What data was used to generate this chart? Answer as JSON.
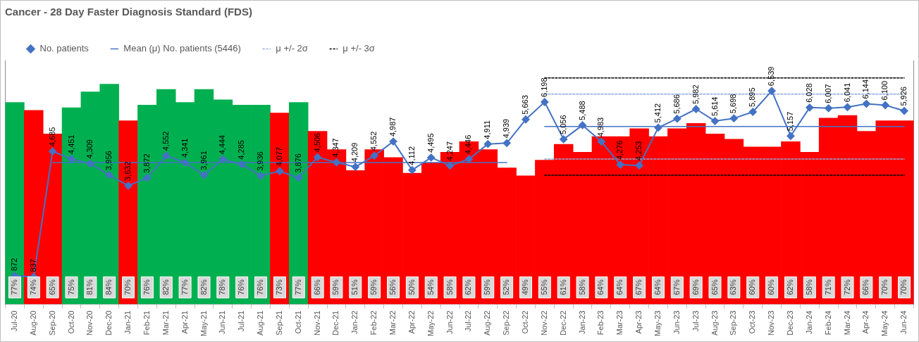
{
  "chart_data": {
    "type": "bar",
    "title": "Cancer - 28 Day Faster Diagnosis Standard (FDS)",
    "categories": [
      "Jul-20",
      "Aug-20",
      "Sep-20",
      "Oct-20",
      "Nov-20",
      "Dec-20",
      "Jan-21",
      "Feb-21",
      "Mar-21",
      "Apr-21",
      "May-21",
      "Jun-21",
      "Jul-21",
      "Aug-21",
      "Sep-21",
      "Oct-21",
      "Nov-21",
      "Dec-21",
      "Jan-22",
      "Feb-22",
      "Mar-22",
      "Apr-22",
      "May-22",
      "Jun-22",
      "Jul-22",
      "Aug-22",
      "Sep-22",
      "Oct-22",
      "Nov-22",
      "Dec-22",
      "Jan-23",
      "Feb-23",
      "Mar-23",
      "Apr-23",
      "May-23",
      "Jun-23",
      "Jul-23",
      "Aug-23",
      "Sep-23",
      "Oct-23",
      "Nov-23",
      "Dec-23",
      "Jan-24",
      "Feb-24",
      "Mar-24",
      "Apr-24",
      "May-24",
      "Jun-24"
    ],
    "ylim": [
      0,
      93
    ],
    "y2lim": [
      0,
      7470
    ],
    "tick_labels": "x",
    "grid": false,
    "legend": "top",
    "series": [
      {
        "axis": "y",
        "values": [
          77,
          74,
          65,
          75,
          81,
          84,
          70,
          76,
          82,
          77,
          82,
          78,
          76,
          76,
          73,
          77,
          66,
          59,
          51,
          59,
          56,
          50,
          54,
          58,
          62,
          59,
          52,
          49,
          55,
          61,
          58,
          64,
          64,
          67,
          64,
          67,
          69,
          65,
          63,
          60,
          60,
          62,
          58,
          71,
          72,
          66,
          70,
          70
        ],
        "value_labels": [
          "77%",
          "74%",
          "65%",
          "75%",
          "81%",
          "84%",
          "70%",
          "76%",
          "82%",
          "77%",
          "82%",
          "78%",
          "76%",
          "76%",
          "73%",
          "77%",
          "66%",
          "59%",
          "51%",
          "59%",
          "56%",
          "50%",
          "54%",
          "58%",
          "62%",
          "59%",
          "52%",
          "49%",
          "55%",
          "61%",
          "58%",
          "64%",
          "64%",
          "67%",
          "64%",
          "67%",
          "69%",
          "65%",
          "63%",
          "60%",
          "60%",
          "62%",
          "58%",
          "71%",
          "72%",
          "66%",
          "70%",
          "70%"
        ],
        "colors": [
          "#00b050",
          "#ff0000",
          "#ff0000",
          "#00b050",
          "#00b050",
          "#00b050",
          "#ff0000",
          "#00b050",
          "#00b050",
          "#00b050",
          "#00b050",
          "#00b050",
          "#00b050",
          "#00b050",
          "#ff0000",
          "#00b050",
          "#ff0000",
          "#ff0000",
          "#ff0000",
          "#ff0000",
          "#ff0000",
          "#ff0000",
          "#ff0000",
          "#ff0000",
          "#ff0000",
          "#ff0000",
          "#ff0000",
          "#ff0000",
          "#ff0000",
          "#ff0000",
          "#ff0000",
          "#ff0000",
          "#ff0000",
          "#ff0000",
          "#ff0000",
          "#ff0000",
          "#ff0000",
          "#ff0000",
          "#ff0000",
          "#ff0000",
          "#ff0000",
          "#ff0000",
          "#ff0000",
          "#ff0000",
          "#ff0000",
          "#ff0000",
          "#ff0000",
          "#ff0000"
        ]
      },
      {
        "type": "line",
        "axis": "y2",
        "name": "No. patients",
        "color": "#4472c4",
        "marker": "diamond",
        "line_style": "solid",
        "values": [
          872,
          837,
          4685,
          4451,
          4309,
          3956,
          3632,
          3872,
          4552,
          4341,
          3961,
          4444,
          4285,
          3936,
          4077,
          3876,
          4506,
          4347,
          4209,
          4552,
          4987,
          4112,
          4495,
          4247,
          4446,
          4911,
          4939,
          5663,
          6198,
          5056,
          5488,
          4983,
          4276,
          4253,
          5412,
          5686,
          5982,
          5614,
          5698,
          5895,
          6539,
          5157,
          6028,
          6007,
          6041,
          6144,
          6100,
          5926
        ],
        "value_labels": [
          "872",
          "837",
          "4,685",
          "4,451",
          "4,309",
          "3,956",
          "3,632",
          "3,872",
          "4,552",
          "4,341",
          "3,961",
          "4,444",
          "4,285",
          "3,936",
          "4,077",
          "3,876",
          "4,506",
          "4,347",
          "4,209",
          "4,552",
          "4,987",
          "4,112",
          "4,495",
          "4,247",
          "4,446",
          "4,911",
          "4,939",
          "5,663",
          "6,198",
          "5,056",
          "5,488",
          "4,983",
          "4,276",
          "4,253",
          "5,412",
          "5,686",
          "5,982",
          "5,614",
          "5,698",
          "5,895",
          "6,539",
          "5,157",
          "6,028",
          "6,007",
          "6,041",
          "6,144",
          "6,100",
          "5,926"
        ]
      },
      {
        "type": "line",
        "axis": "y2",
        "name": "Mean (μ) No. patients (5446)",
        "color": "#4472c4",
        "marker": "none",
        "line_style": "solid",
        "values": [
          null,
          null,
          4341,
          4341,
          4341,
          4341,
          4341,
          4341,
          4341,
          4341,
          4341,
          4341,
          4341,
          4341,
          4341,
          4341,
          4341,
          4341,
          4341,
          4341,
          4341,
          4341,
          4341,
          4341,
          4341,
          4341,
          4341,
          null,
          5446,
          5446,
          5446,
          5446,
          5446,
          5446,
          5446,
          5446,
          5446,
          5446,
          5446,
          5446,
          5446,
          5446,
          5446,
          5446,
          5446,
          5446,
          5446,
          5446
        ]
      },
      {
        "type": "line",
        "axis": "y2",
        "name": "μ +/- 2σ",
        "color": "#8faadc",
        "marker": "none",
        "line_style": "dashed",
        "values": [
          null,
          null,
          null,
          null,
          null,
          null,
          null,
          null,
          null,
          null,
          null,
          null,
          null,
          null,
          null,
          null,
          null,
          null,
          null,
          null,
          null,
          null,
          null,
          null,
          null,
          null,
          null,
          null,
          6440,
          6440,
          6440,
          6440,
          6440,
          6440,
          6440,
          6440,
          6440,
          6440,
          6440,
          6440,
          6440,
          6440,
          6440,
          6440,
          6440,
          6440,
          6440,
          6440
        ]
      },
      {
        "type": "line",
        "axis": "y2",
        "color": "#8faadc",
        "marker": "none",
        "line_style": "dashed",
        "values": [
          null,
          null,
          null,
          null,
          null,
          null,
          null,
          null,
          null,
          null,
          null,
          null,
          null,
          null,
          null,
          null,
          null,
          null,
          null,
          null,
          null,
          null,
          null,
          null,
          null,
          null,
          null,
          null,
          4452,
          4452,
          4452,
          4452,
          4452,
          4452,
          4452,
          4452,
          4452,
          4452,
          4452,
          4452,
          4452,
          4452,
          4452,
          4452,
          4452,
          4452,
          4452,
          4452
        ]
      },
      {
        "type": "line",
        "axis": "y2",
        "name": "μ +/- 3σ",
        "color": "#000000",
        "marker": "none",
        "line_style": "dashed",
        "values": [
          null,
          null,
          null,
          null,
          null,
          null,
          null,
          null,
          null,
          null,
          null,
          null,
          null,
          null,
          null,
          null,
          null,
          null,
          null,
          null,
          null,
          null,
          null,
          null,
          null,
          null,
          null,
          null,
          6937,
          6937,
          6937,
          6937,
          6937,
          6937,
          6937,
          6937,
          6937,
          6937,
          6937,
          6937,
          6937,
          6937,
          6937,
          6937,
          6937,
          6937,
          6937,
          6937
        ]
      },
      {
        "type": "line",
        "axis": "y2",
        "color": "#000000",
        "marker": "none",
        "line_style": "dashed",
        "values": [
          null,
          null,
          null,
          null,
          null,
          null,
          null,
          null,
          null,
          null,
          null,
          null,
          null,
          null,
          null,
          null,
          null,
          null,
          null,
          null,
          null,
          null,
          null,
          null,
          null,
          null,
          null,
          null,
          3955,
          3955,
          3955,
          3955,
          3955,
          3955,
          3955,
          3955,
          3955,
          3955,
          3955,
          3955,
          3955,
          3955,
          3955,
          3955,
          3955,
          3955,
          3955,
          3955
        ]
      }
    ]
  }
}
